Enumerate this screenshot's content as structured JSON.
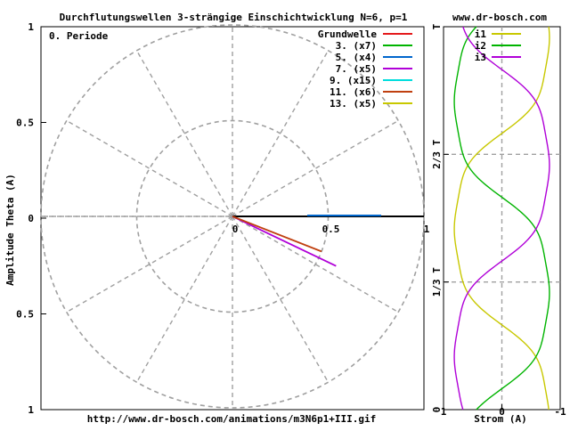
{
  "title": "Durchflutungswellen 3-strängige Einschichtwicklung N=6, p=1",
  "site": "www.dr-bosch.com",
  "url": "http://www.dr-bosch.com/animations/m3N6p1+III.gif",
  "chart_data": [
    {
      "type": "polar-phasor",
      "period_label": "0. Periode",
      "ylabel": "Amplitude Theta (A)",
      "xlim": [
        0,
        1
      ],
      "ylim": [
        -1,
        1
      ],
      "y_tick_labels": [
        "1",
        "0.5",
        "0",
        "0.5",
        "1"
      ],
      "x_tick_labels": [
        "0",
        "0.5",
        "1"
      ],
      "rings": [
        0.5,
        1.0
      ],
      "spoke_step_deg": 30,
      "legend_position": "top-right",
      "series": [
        {
          "name": "Grundwelle",
          "color": "#e41a1c",
          "angle_deg": 0,
          "magnitude": 1.0
        },
        {
          "name": "3. (x7)",
          "color": "#00b400",
          "angle_deg": 0,
          "magnitude": 0.0
        },
        {
          "name": "5. (x4)",
          "color": "#0066cc",
          "angle_deg": 0,
          "magnitude": 0.0
        },
        {
          "name": "7. (x5)",
          "color": "#b000d8",
          "angle_deg": -25.6,
          "magnitude": 0.6
        },
        {
          "name": "9. (x15)",
          "color": "#00dddd",
          "angle_deg": 0,
          "magnitude": 0.0
        },
        {
          "name": "11. (x6)",
          "color": "#c04010",
          "angle_deg": -21.5,
          "magnitude": 0.5
        },
        {
          "name": "13. (x5)",
          "color": "#c8c800",
          "angle_deg": 0,
          "magnitude": 0.0
        }
      ]
    },
    {
      "type": "line",
      "xlabel": "Strom (A)",
      "x_tick_labels": [
        "1",
        "0",
        "-1"
      ],
      "xlim": [
        1,
        -1
      ],
      "y_tick_labels": [
        "0",
        "1/3 T",
        "2/3 T",
        "T"
      ],
      "ylim": [
        0,
        1
      ],
      "legend_position": "top-left",
      "series": [
        {
          "name": "i1",
          "color": "#c8c800",
          "phase_deg": 0
        },
        {
          "name": "i2",
          "color": "#00b400",
          "phase_deg": -120
        },
        {
          "name": "i3",
          "color": "#b000d8",
          "phase_deg": -240
        }
      ]
    }
  ]
}
